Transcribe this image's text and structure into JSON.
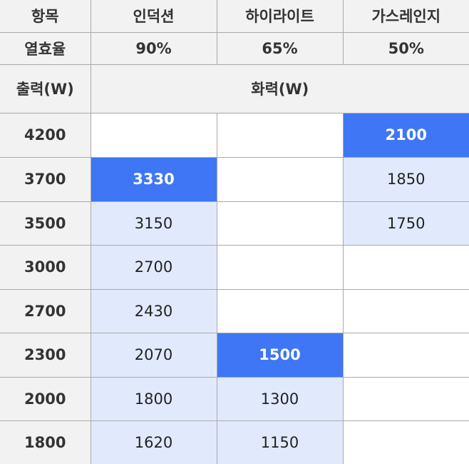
{
  "header": {
    "item_label": "항목",
    "columns": [
      "인덕션",
      "하이라이트",
      "가스레인지"
    ],
    "efficiency_label": "열효율",
    "efficiency": [
      "90%",
      "65%",
      "50%"
    ],
    "output_label": "출력(W)",
    "firepower_label": "화력(W)"
  },
  "colors": {
    "highlight": "#3f76f6",
    "light": "#e1eafc",
    "header": "#f2f2f2"
  },
  "rows": [
    {
      "output": "4200",
      "cells": [
        {
          "v": "",
          "s": "wh"
        },
        {
          "v": "",
          "s": "wh"
        },
        {
          "v": "2100",
          "s": "hi"
        }
      ]
    },
    {
      "output": "3700",
      "cells": [
        {
          "v": "3330",
          "s": "hi"
        },
        {
          "v": "",
          "s": "wh"
        },
        {
          "v": "1850",
          "s": "lt"
        }
      ]
    },
    {
      "output": "3500",
      "cells": [
        {
          "v": "3150",
          "s": "lt"
        },
        {
          "v": "",
          "s": "wh"
        },
        {
          "v": "1750",
          "s": "lt"
        }
      ]
    },
    {
      "output": "3000",
      "cells": [
        {
          "v": "2700",
          "s": "lt"
        },
        {
          "v": "",
          "s": "wh"
        },
        {
          "v": "",
          "s": "wh"
        }
      ]
    },
    {
      "output": "2700",
      "cells": [
        {
          "v": "2430",
          "s": "lt"
        },
        {
          "v": "",
          "s": "wh"
        },
        {
          "v": "",
          "s": "wh"
        }
      ]
    },
    {
      "output": "2300",
      "cells": [
        {
          "v": "2070",
          "s": "lt"
        },
        {
          "v": "1500",
          "s": "hi"
        },
        {
          "v": "",
          "s": "wh"
        }
      ]
    },
    {
      "output": "2000",
      "cells": [
        {
          "v": "1800",
          "s": "lt"
        },
        {
          "v": "1300",
          "s": "lt"
        },
        {
          "v": "",
          "s": "wh"
        }
      ]
    },
    {
      "output": "1800",
      "cells": [
        {
          "v": "1620",
          "s": "lt"
        },
        {
          "v": "1150",
          "s": "lt"
        },
        {
          "v": "",
          "s": "wh"
        }
      ]
    }
  ]
}
